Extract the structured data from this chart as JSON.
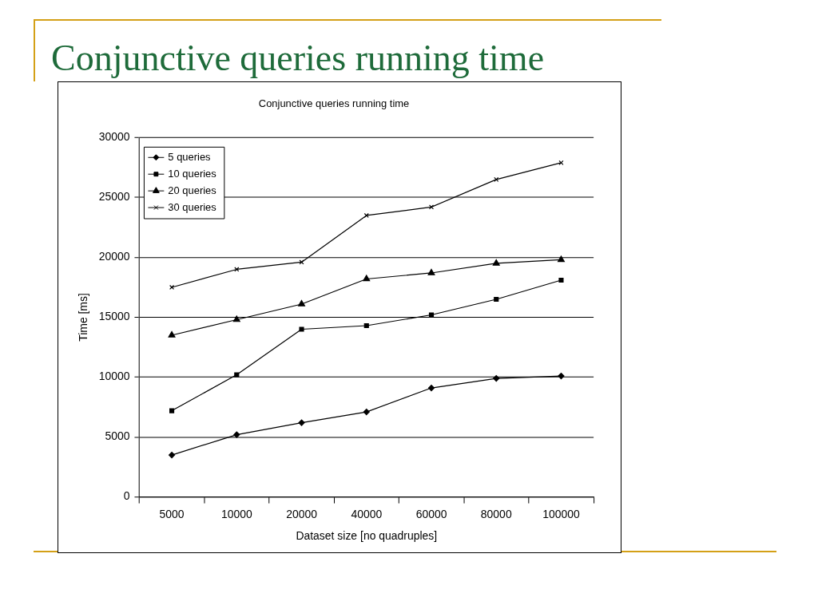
{
  "chart_data": {
    "type": "line",
    "title": "Conjunctive queries running time",
    "subtitle": "Conjunctive queries running time",
    "xlabel": "Dataset size [no quadruples]",
    "ylabel": "Time [ms]",
    "categories": [
      "5000",
      "10000",
      "20000",
      "40000",
      "60000",
      "80000",
      "100000"
    ],
    "series": [
      {
        "name": "5 queries",
        "color": "#000000",
        "marker": "diamond",
        "values": [
          3500,
          5200,
          6200,
          7100,
          9100,
          9900,
          10100
        ]
      },
      {
        "name": "10 queries",
        "color": "#000000",
        "marker": "square",
        "values": [
          7200,
          10200,
          14000,
          14300,
          15200,
          16500,
          18100
        ]
      },
      {
        "name": "20 queries",
        "color": "#000000",
        "marker": "triangle",
        "values": [
          13500,
          14800,
          16100,
          18200,
          18700,
          19500,
          19800
        ]
      },
      {
        "name": "30 queries",
        "color": "#000000",
        "marker": "cross",
        "values": [
          17500,
          19000,
          19600,
          23500,
          24200,
          26500,
          27900
        ]
      }
    ],
    "ylim": [
      0,
      30000
    ],
    "yticks": [
      0,
      5000,
      10000,
      15000,
      20000,
      25000,
      30000
    ],
    "grid": "y",
    "legend": "top left",
    "line_style": "solid"
  }
}
